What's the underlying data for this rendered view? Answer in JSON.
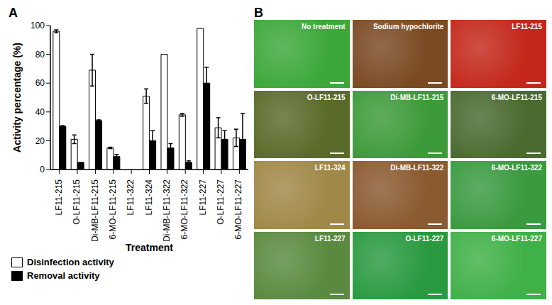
{
  "chart_data": {
    "type": "bar",
    "title": "A",
    "x_label": "Treatment",
    "y_label": "Activity percentage (%)",
    "categories": [
      "LF11-215",
      "O-LF11-215",
      "Di-MB-LF11-215",
      "6-MO-LF11-215",
      "LF11-322",
      "LF11-324",
      "Di-MB-LF11-322",
      "6-MO-LF11-322",
      "LF11-227",
      "O-LF11-227",
      "6-MO-LF11-227"
    ],
    "series": [
      {
        "name": "Disinfection activity",
        "color": "#ffffff",
        "values": [
          96,
          21,
          69,
          15,
          0,
          51,
          80,
          38,
          98,
          29,
          22
        ],
        "errors": [
          1,
          3,
          11,
          0.5,
          0,
          5,
          0,
          1,
          0,
          7,
          6
        ]
      },
      {
        "name": "Removal activity",
        "color": "#000000",
        "values": [
          30,
          5,
          34,
          9,
          0,
          20,
          15,
          5,
          60,
          21,
          21
        ],
        "errors": [
          0.5,
          0,
          0.5,
          1.5,
          0,
          7,
          3,
          1,
          11,
          6,
          18
        ]
      }
    ],
    "ylim": [
      0,
      100
    ],
    "yticks": [
      0,
      20,
      40,
      60,
      80,
      100
    ],
    "grid": false,
    "legend": "bottom"
  },
  "panel_b": {
    "title": "B",
    "images": [
      {
        "label": "No treatment",
        "color": "#3ca83a"
      },
      {
        "label": "Sodium hypochlorite",
        "color": "#7a4a22"
      },
      {
        "label": "LF11-215",
        "color": "#c4281c"
      },
      {
        "label": "O-LF11-215",
        "color": "#5a6a2a"
      },
      {
        "label": "Di-MB-LF11-215",
        "color": "#3d9a3a"
      },
      {
        "label": "6-MO-LF11-215",
        "color": "#4a6a30"
      },
      {
        "label": "LF11-324",
        "color": "#a08848"
      },
      {
        "label": "Di-MB-LF11-322",
        "color": "#8a5a30"
      },
      {
        "label": "6-MO-LF11-322",
        "color": "#3a9a40"
      },
      {
        "label": "LF11-227",
        "color": "#5a8a40"
      },
      {
        "label": "O-LF11-227",
        "color": "#2a9a40"
      },
      {
        "label": "6-MO-LF11-227",
        "color": "#40b048"
      }
    ]
  }
}
